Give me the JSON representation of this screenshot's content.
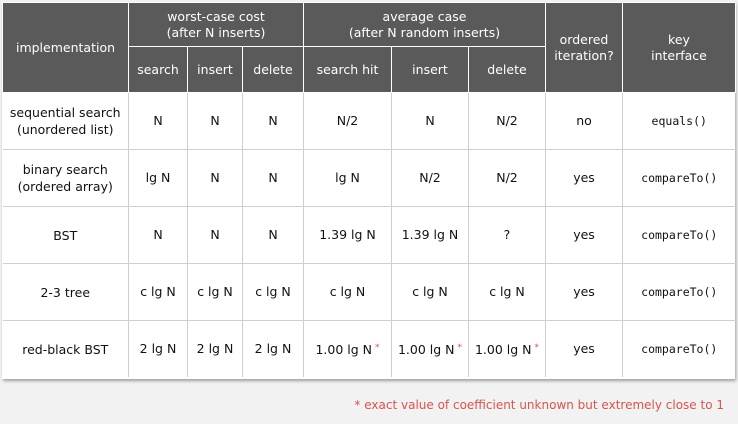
{
  "header": {
    "implementation": "implementation",
    "worst_case": [
      "worst-case cost",
      "(after N inserts)"
    ],
    "average_case": [
      "average case",
      "(after N random inserts)"
    ],
    "ordered_iteration": [
      "ordered",
      "iteration?"
    ],
    "key_interface": [
      "key",
      "interface"
    ],
    "sub": [
      "search",
      "insert",
      "delete",
      "search hit",
      "insert",
      "delete"
    ]
  },
  "rows": [
    {
      "name": [
        "sequential search",
        "(unordered list)"
      ],
      "cells": [
        "N",
        "N",
        "N",
        "N/2",
        "N",
        "N/2"
      ],
      "star": [
        false,
        false,
        false
      ],
      "ordered": "no",
      "key": "equals()"
    },
    {
      "name": [
        "binary search",
        "(ordered array)"
      ],
      "cells": [
        "lg N",
        "N",
        "N",
        "lg N",
        "N/2",
        "N/2"
      ],
      "star": [
        false,
        false,
        false
      ],
      "ordered": "yes",
      "key": "compareTo()"
    },
    {
      "name": [
        "BST"
      ],
      "cells": [
        "N",
        "N",
        "N",
        "1.39 lg N",
        "1.39 lg N",
        "?"
      ],
      "star": [
        false,
        false,
        false
      ],
      "ordered": "yes",
      "key": "compareTo()"
    },
    {
      "name": [
        "2-3 tree"
      ],
      "cells": [
        "c lg N",
        "c lg N",
        "c lg N",
        "c lg N",
        "c lg N",
        "c lg N"
      ],
      "star": [
        false,
        false,
        false
      ],
      "ordered": "yes",
      "key": "compareTo()"
    },
    {
      "name": [
        "red-black BST"
      ],
      "cells": [
        "2 lg N",
        "2 lg N",
        "2 lg N",
        "1.00 lg N",
        "1.00 lg N",
        "1.00 lg N"
      ],
      "star": [
        true,
        true,
        true
      ],
      "ordered": "yes",
      "key": "compareTo()"
    }
  ],
  "footnote": {
    "mark": "*",
    "text": "exact value of coefficient unknown but extremely close to 1"
  },
  "colors": {
    "header_bg": "#5a5a5a",
    "accent": "#d9534f"
  }
}
